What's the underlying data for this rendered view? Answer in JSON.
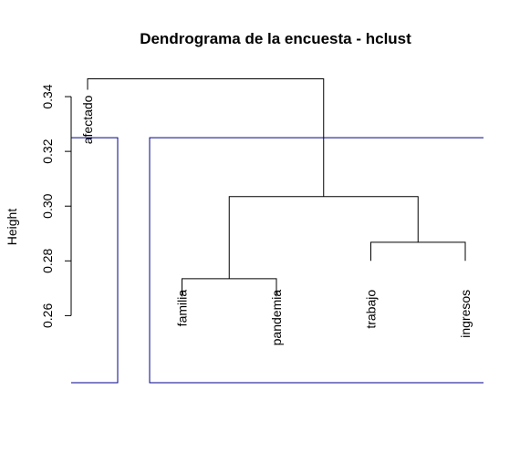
{
  "chart_data": {
    "type": "dendrogram",
    "title": "Dendrograma de la encuesta - hclust",
    "ylabel": "Height",
    "xlabel": "",
    "ylim": [
      0.2355,
      0.35
    ],
    "yticks": [
      0.26,
      0.28,
      0.3,
      0.32,
      0.34
    ],
    "ytick_labels": [
      "0.26",
      "0.28",
      "0.30",
      "0.32",
      "0.34"
    ],
    "leaves": [
      "afectado",
      "familia",
      "pandemia",
      "trabajo",
      "ingresos"
    ],
    "leaf_hang_height": 0.31,
    "merges": [
      {
        "left": "familia",
        "right": "pandemia",
        "height": 0.2735
      },
      {
        "left": "trabajo",
        "right": "ingresos",
        "height": 0.2868
      },
      {
        "left": "familia+pandemia",
        "right": "trabajo+ingresos",
        "height": 0.3035
      },
      {
        "left": "afectado",
        "right": "familia+pandemia+trabajo+ingresos",
        "height": 0.3465
      }
    ],
    "cut_height": 0.325,
    "cut_clusters": [
      {
        "members": [
          "afectado"
        ],
        "color": "#00008b"
      },
      {
        "members": [
          "familia",
          "pandemia",
          "trabajo",
          "ingresos"
        ],
        "color": "#00008b"
      }
    ],
    "line_color": "#000000"
  }
}
